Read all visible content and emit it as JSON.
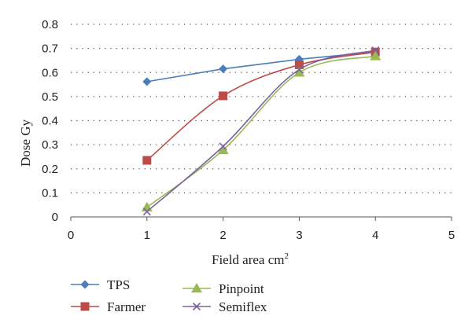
{
  "chart_data": {
    "type": "line",
    "title": "",
    "xlabel": "Field area cm",
    "xlabel_superscript": "2",
    "ylabel": "Dose Gy",
    "xlim": [
      0,
      5
    ],
    "ylim": [
      0,
      0.8
    ],
    "x_ticks": [
      "0",
      "1",
      "2",
      "3",
      "4",
      "5"
    ],
    "y_ticks": [
      "0",
      "0.1",
      "0.2",
      "0.3",
      "0.4",
      "0.5",
      "0.6",
      "0.7",
      "0.8"
    ],
    "grid": "horizontal dotted",
    "legend_position": "bottom",
    "series": [
      {
        "name": "TPS",
        "color": "#4a7ebb",
        "marker": "diamond",
        "x": [
          1,
          2,
          3,
          4
        ],
        "y": [
          0.562,
          0.615,
          0.655,
          0.685
        ]
      },
      {
        "name": "Farmer",
        "color": "#be4b48",
        "marker": "square",
        "x": [
          1,
          2,
          3,
          4
        ],
        "y": [
          0.235,
          0.503,
          0.632,
          0.685
        ]
      },
      {
        "name": "Pinpoint",
        "color": "#98b954",
        "marker": "triangle",
        "x": [
          1,
          2,
          3,
          4
        ],
        "y": [
          0.04,
          0.278,
          0.6,
          0.668
        ]
      },
      {
        "name": "Semiflex",
        "color": "#7d60a0",
        "marker": "x",
        "x": [
          1,
          2,
          3,
          4
        ],
        "y": [
          0.022,
          0.293,
          0.612,
          0.692
        ]
      }
    ]
  }
}
